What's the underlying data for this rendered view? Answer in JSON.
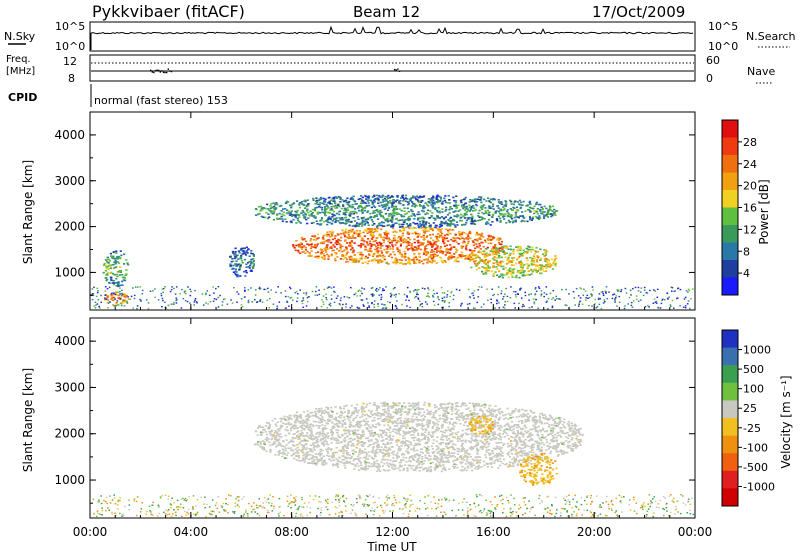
{
  "header": {
    "radar_title": "Pykkvibaer (fitACF)",
    "beam": "Beam 12",
    "date": "17/Oct/2009"
  },
  "strip_labels": {
    "nsky": "N.Sky",
    "nsearch": "N.Search",
    "freq_line1": "Freq.",
    "freq_line2": "[MHz]",
    "nave": "Nave",
    "cpid": "CPID",
    "cpid_value": "normal (fast stereo) 153"
  },
  "strip_ticks": {
    "noise_left": [
      "10^5",
      "10^0"
    ],
    "noise_right": [
      "10^5",
      "10^0"
    ],
    "freq_left": [
      "12",
      "8"
    ],
    "nave_right": [
      "60",
      "0"
    ]
  },
  "colors": {
    "power_scale": [
      "#1a1aff",
      "#1e3fa0",
      "#2a78a8",
      "#3a9a5a",
      "#5fc040",
      "#f0d020",
      "#f0a010",
      "#f07010",
      "#f03a10",
      "#e01010"
    ],
    "velocity_scale": [
      "#2030c0",
      "#3a70b0",
      "#3aa050",
      "#70c040",
      "#c8c8c0",
      "#f0c020",
      "#f09010",
      "#f06010",
      "#e02020",
      "#d00000"
    ],
    "ground_scatter": "#c8c8c0"
  },
  "chart_data": [
    {
      "type": "heatmap",
      "title": "Power",
      "ylabel": "Slant Range [km]",
      "xlabel": "",
      "xticks": [
        "00:00",
        "04:00",
        "08:00",
        "12:00",
        "16:00",
        "20:00",
        "00:00"
      ],
      "xlim_hours": [
        0,
        24
      ],
      "yticks": [
        "1000",
        "2000",
        "3000",
        "4000"
      ],
      "ylim_km": [
        180,
        4500
      ],
      "colorbar_label": "Power [dB]",
      "colorbar_ticks": [
        "28",
        "24",
        "20",
        "16",
        "12",
        "8",
        "4"
      ],
      "colorbar_range_db": [
        0,
        32
      ],
      "features": [
        {
          "start_h": 8.0,
          "end_h": 16.5,
          "range_km": [
            1200,
            2000
          ],
          "power_db": 26
        },
        {
          "start_h": 6.5,
          "end_h": 18.5,
          "range_km": [
            2000,
            2700
          ],
          "power_db": 12
        },
        {
          "start_h": 15.0,
          "end_h": 18.5,
          "range_km": [
            900,
            1600
          ],
          "power_db": 20
        },
        {
          "start_h": 0.5,
          "end_h": 1.5,
          "range_km": [
            700,
            1500
          ],
          "power_db": 14
        },
        {
          "start_h": 0.5,
          "end_h": 1.5,
          "range_km": [
            300,
            600
          ],
          "power_db": 24
        },
        {
          "start_h": 5.5,
          "end_h": 6.5,
          "range_km": [
            900,
            1600
          ],
          "power_db": 10
        }
      ]
    },
    {
      "type": "heatmap",
      "title": "Velocity",
      "ylabel": "Slant Range [km]",
      "xlabel": "Time UT",
      "xticks": [
        "00:00",
        "04:00",
        "08:00",
        "12:00",
        "16:00",
        "20:00",
        "00:00"
      ],
      "xlim_hours": [
        0,
        24
      ],
      "yticks": [
        "1000",
        "2000",
        "3000",
        "4000"
      ],
      "ylim_km": [
        180,
        4500
      ],
      "colorbar_label": "Velocity [m s⁻¹]",
      "colorbar_ticks": [
        "1000",
        "500",
        "100",
        "25",
        "-25",
        "-100",
        "-500",
        "-1000"
      ],
      "features": [
        {
          "start_h": 6.5,
          "end_h": 19.5,
          "range_km": [
            1200,
            2700
          ],
          "velocity_ms": 0
        },
        {
          "start_h": 15.0,
          "end_h": 16.0,
          "range_km": [
            2000,
            2400
          ],
          "velocity_ms": -100
        },
        {
          "start_h": 17.0,
          "end_h": 18.5,
          "range_km": [
            900,
            1600
          ],
          "velocity_ms": -100
        }
      ]
    }
  ]
}
